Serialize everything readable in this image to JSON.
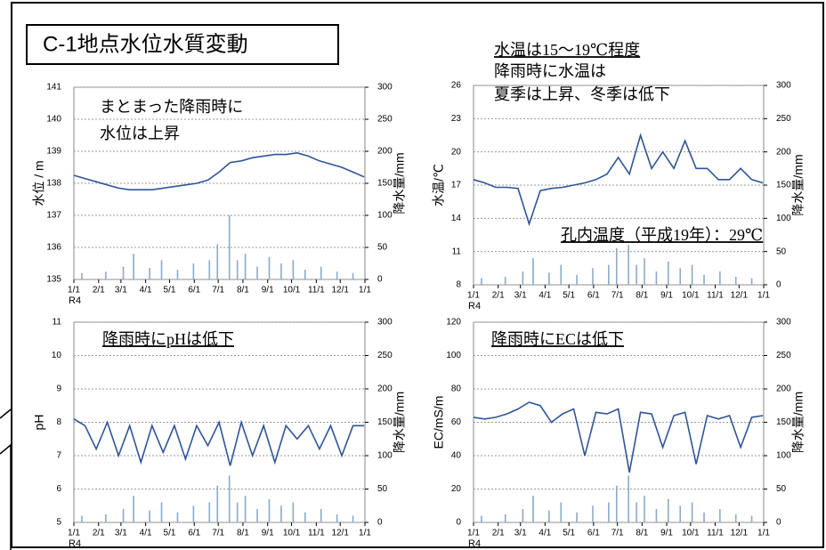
{
  "title": "C-1地点水位水質変動",
  "chart_data": [
    {
      "type": "line",
      "y_label": "水位 / m",
      "y2_label": "降水量/mm",
      "x_label": "R4",
      "annotations": [
        "まとまった降雨時に",
        "水位は上昇"
      ],
      "xlim": [
        0,
        365
      ],
      "xticks": [
        {
          "value": 0,
          "label": "1/1"
        },
        {
          "value": 31,
          "label": "2/1"
        },
        {
          "value": 59,
          "label": "3/1"
        },
        {
          "value": 90,
          "label": "4/1"
        },
        {
          "value": 120,
          "label": "5/1"
        },
        {
          "value": 151,
          "label": "6/1"
        },
        {
          "value": 181,
          "label": "7/1"
        },
        {
          "value": 212,
          "label": "8/1"
        },
        {
          "value": 243,
          "label": "9/1"
        },
        {
          "value": 273,
          "label": "10/1"
        },
        {
          "value": 304,
          "label": "11/1"
        },
        {
          "value": 334,
          "label": "12/1"
        },
        {
          "value": 365,
          "label": "1/1"
        }
      ],
      "ylim": [
        135,
        141
      ],
      "yticks": [
        135,
        136,
        137,
        138,
        139,
        140,
        141
      ],
      "y2lim": [
        0,
        300
      ],
      "y2ticks": [
        0,
        50,
        100,
        150,
        200,
        250,
        300
      ],
      "grid": true,
      "series": [
        {
          "type": "line",
          "color": "#2f5597",
          "x": [
            0,
            14,
            28,
            42,
            56,
            70,
            84,
            98,
            112,
            126,
            140,
            154,
            168,
            182,
            196,
            210,
            224,
            238,
            252,
            266,
            280,
            294,
            308,
            322,
            336,
            350,
            364
          ],
          "values": [
            138.25,
            138.15,
            138.05,
            137.95,
            137.85,
            137.8,
            137.8,
            137.8,
            137.85,
            137.9,
            137.95,
            138.0,
            138.1,
            138.35,
            138.65,
            138.7,
            138.8,
            138.85,
            138.9,
            138.9,
            138.95,
            138.85,
            138.7,
            138.6,
            138.5,
            138.35,
            138.2
          ]
        },
        {
          "type": "bar",
          "axis": "y2",
          "color": "#8ea9c8",
          "x": [
            10,
            40,
            62,
            75,
            95,
            110,
            130,
            150,
            170,
            180,
            195,
            205,
            215,
            230,
            245,
            260,
            275,
            290,
            310,
            330,
            350
          ],
          "values": [
            10,
            12,
            20,
            40,
            18,
            30,
            15,
            25,
            30,
            55,
            100,
            30,
            40,
            20,
            35,
            25,
            30,
            15,
            20,
            12,
            10
          ]
        }
      ]
    },
    {
      "type": "line",
      "y_label": "水温/℃",
      "y2_label": "降水量/mm",
      "x_label": "R4",
      "annotations": [
        "水温は15～19℃程度",
        "降雨時に水温は",
        "夏季は上昇、冬季は低下",
        "孔内温度（平成19年）：29℃"
      ],
      "xlim": [
        0,
        365
      ],
      "xticks": [
        {
          "value": 0,
          "label": "1/1"
        },
        {
          "value": 31,
          "label": "2/1"
        },
        {
          "value": 59,
          "label": "3/1"
        },
        {
          "value": 90,
          "label": "4/1"
        },
        {
          "value": 120,
          "label": "5/1"
        },
        {
          "value": 151,
          "label": "6/1"
        },
        {
          "value": 181,
          "label": "7/1"
        },
        {
          "value": 212,
          "label": "8/1"
        },
        {
          "value": 243,
          "label": "9/1"
        },
        {
          "value": 273,
          "label": "10/1"
        },
        {
          "value": 304,
          "label": "11/1"
        },
        {
          "value": 334,
          "label": "12/1"
        },
        {
          "value": 365,
          "label": "1/1"
        }
      ],
      "ylim": [
        8,
        26
      ],
      "yticks": [
        8,
        11,
        14,
        17,
        20,
        23,
        26
      ],
      "y2lim": [
        0,
        300
      ],
      "y2ticks": [
        0,
        50,
        100,
        150,
        200,
        250,
        300
      ],
      "grid": true,
      "series": [
        {
          "type": "line",
          "color": "#2f5597",
          "x": [
            0,
            14,
            28,
            42,
            56,
            70,
            84,
            98,
            112,
            126,
            140,
            154,
            168,
            182,
            196,
            210,
            224,
            238,
            252,
            266,
            280,
            294,
            308,
            322,
            336,
            350,
            364
          ],
          "values": [
            17.5,
            17.2,
            16.8,
            16.8,
            16.7,
            13.5,
            16.5,
            16.7,
            16.8,
            17.0,
            17.2,
            17.5,
            18.0,
            19.5,
            18.0,
            21.5,
            18.5,
            20.0,
            18.5,
            21.0,
            18.5,
            18.5,
            17.5,
            17.5,
            18.5,
            17.5,
            17.2
          ]
        },
        {
          "type": "bar",
          "axis": "y2",
          "color": "#8ea9c8",
          "x": [
            10,
            40,
            62,
            75,
            95,
            110,
            130,
            150,
            170,
            180,
            195,
            205,
            215,
            230,
            245,
            260,
            275,
            290,
            310,
            330,
            350
          ],
          "values": [
            10,
            12,
            20,
            40,
            18,
            30,
            15,
            25,
            30,
            55,
            60,
            30,
            40,
            20,
            35,
            25,
            30,
            15,
            20,
            12,
            10
          ]
        }
      ]
    },
    {
      "type": "line",
      "y_label": "pH",
      "y2_label": "降水量/mm",
      "x_label": "R4",
      "annotations": [
        "降雨時にpHは低下"
      ],
      "xlim": [
        0,
        365
      ],
      "xticks": [
        {
          "value": 0,
          "label": "1/1"
        },
        {
          "value": 31,
          "label": "2/1"
        },
        {
          "value": 59,
          "label": "3/1"
        },
        {
          "value": 90,
          "label": "4/1"
        },
        {
          "value": 120,
          "label": "5/1"
        },
        {
          "value": 151,
          "label": "6/1"
        },
        {
          "value": 181,
          "label": "7/1"
        },
        {
          "value": 212,
          "label": "8/1"
        },
        {
          "value": 243,
          "label": "9/1"
        },
        {
          "value": 273,
          "label": "10/1"
        },
        {
          "value": 304,
          "label": "11/1"
        },
        {
          "value": 334,
          "label": "12/1"
        },
        {
          "value": 365,
          "label": "1/1"
        }
      ],
      "ylim": [
        5,
        11
      ],
      "yticks": [
        5,
        6,
        7,
        8,
        9,
        10,
        11
      ],
      "y2lim": [
        0,
        300
      ],
      "y2ticks": [
        0,
        50,
        100,
        150,
        200,
        250,
        300
      ],
      "grid": true,
      "series": [
        {
          "type": "line",
          "color": "#2f5597",
          "x": [
            0,
            14,
            28,
            42,
            56,
            70,
            84,
            98,
            112,
            126,
            140,
            154,
            168,
            182,
            196,
            210,
            224,
            238,
            252,
            266,
            280,
            294,
            308,
            322,
            336,
            350,
            364
          ],
          "values": [
            8.1,
            7.9,
            7.2,
            8.0,
            7.0,
            7.9,
            6.8,
            7.9,
            7.1,
            7.9,
            6.9,
            7.9,
            7.3,
            8.0,
            6.7,
            8.0,
            7.0,
            7.9,
            6.8,
            7.9,
            7.5,
            7.9,
            7.2,
            7.9,
            7.0,
            7.9,
            7.9
          ]
        },
        {
          "type": "bar",
          "axis": "y2",
          "color": "#8ea9c8",
          "x": [
            10,
            40,
            62,
            75,
            95,
            110,
            130,
            150,
            170,
            180,
            195,
            205,
            215,
            230,
            245,
            260,
            275,
            290,
            310,
            330,
            350
          ],
          "values": [
            10,
            12,
            20,
            40,
            18,
            30,
            15,
            25,
            30,
            55,
            70,
            30,
            40,
            20,
            35,
            25,
            30,
            15,
            20,
            12,
            10
          ]
        }
      ]
    },
    {
      "type": "line",
      "y_label": "EC/mS/m",
      "y2_label": "降水量/mm",
      "x_label": "R4",
      "annotations": [
        "降雨時にECは低下"
      ],
      "xlim": [
        0,
        365
      ],
      "xticks": [
        {
          "value": 0,
          "label": "1/1"
        },
        {
          "value": 31,
          "label": "2/1"
        },
        {
          "value": 59,
          "label": "3/1"
        },
        {
          "value": 90,
          "label": "4/1"
        },
        {
          "value": 120,
          "label": "5/1"
        },
        {
          "value": 151,
          "label": "6/1"
        },
        {
          "value": 181,
          "label": "7/1"
        },
        {
          "value": 212,
          "label": "8/1"
        },
        {
          "value": 243,
          "label": "9/1"
        },
        {
          "value": 273,
          "label": "10/1"
        },
        {
          "value": 304,
          "label": "11/1"
        },
        {
          "value": 334,
          "label": "12/1"
        },
        {
          "value": 365,
          "label": "1/1"
        }
      ],
      "ylim": [
        0,
        120
      ],
      "yticks": [
        0,
        20,
        40,
        60,
        80,
        100,
        120
      ],
      "y2lim": [
        0,
        300
      ],
      "y2ticks": [
        0,
        50,
        100,
        150,
        200,
        250,
        300
      ],
      "grid": true,
      "series": [
        {
          "type": "line",
          "color": "#2f5597",
          "x": [
            0,
            14,
            28,
            42,
            56,
            70,
            84,
            98,
            112,
            126,
            140,
            154,
            168,
            182,
            196,
            210,
            224,
            238,
            252,
            266,
            280,
            294,
            308,
            322,
            336,
            350,
            364
          ],
          "values": [
            63,
            62,
            63,
            65,
            68,
            72,
            70,
            60,
            65,
            68,
            40,
            66,
            65,
            68,
            30,
            66,
            65,
            45,
            64,
            66,
            35,
            64,
            62,
            64,
            45,
            63,
            64
          ]
        },
        {
          "type": "bar",
          "axis": "y2",
          "color": "#8ea9c8",
          "x": [
            10,
            40,
            62,
            75,
            95,
            110,
            130,
            150,
            170,
            180,
            195,
            205,
            215,
            230,
            245,
            260,
            275,
            290,
            310,
            330,
            350
          ],
          "values": [
            10,
            12,
            20,
            40,
            18,
            30,
            15,
            25,
            30,
            55,
            70,
            30,
            40,
            20,
            35,
            25,
            30,
            15,
            20,
            12,
            10
          ]
        }
      ]
    }
  ]
}
